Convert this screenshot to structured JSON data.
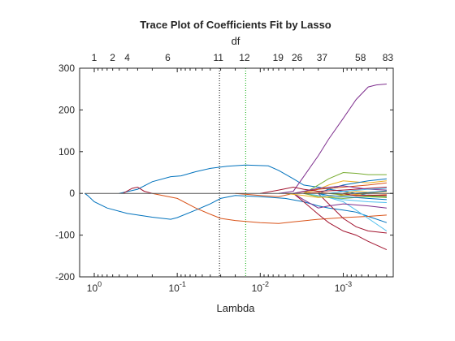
{
  "chart_data": {
    "type": "line",
    "title": "Trace Plot of Coefficients Fit by Lasso",
    "xlabel": "Lambda",
    "top_label": "df",
    "x_scale": "log",
    "x_reversed": true,
    "xlim": [
      1.5,
      0.00025
    ],
    "ylim": [
      -200,
      300
    ],
    "y_ticks": [
      -200,
      -100,
      0,
      100,
      200,
      300
    ],
    "x_ticks": [
      {
        "value": 1,
        "base": "10",
        "exp": "0"
      },
      {
        "value": 0.1,
        "base": "10",
        "exp": "-1"
      },
      {
        "value": 0.01,
        "base": "10",
        "exp": "-2"
      },
      {
        "value": 0.001,
        "base": "10",
        "exp": "-3"
      }
    ],
    "df_ticks": [
      {
        "lambda": 1.0,
        "df": "1"
      },
      {
        "lambda": 0.6,
        "df": "2"
      },
      {
        "lambda": 0.4,
        "df": "4"
      },
      {
        "lambda": 0.13,
        "df": "6"
      },
      {
        "lambda": 0.032,
        "df": "11"
      },
      {
        "lambda": 0.0155,
        "df": "12"
      },
      {
        "lambda": 0.0061,
        "df": "19"
      },
      {
        "lambda": 0.0036,
        "df": "26"
      },
      {
        "lambda": 0.0018,
        "df": "37"
      },
      {
        "lambda": 0.00062,
        "df": "58"
      },
      {
        "lambda": 0.00029,
        "df": "83"
      }
    ],
    "vlines": [
      {
        "lambda": 0.031,
        "color": "#000000"
      },
      {
        "lambda": 0.015,
        "color": "#00aa00"
      }
    ],
    "series": [
      {
        "color": "#0072BD",
        "points": [
          [
            1.3,
            0
          ],
          [
            1.2,
            -5
          ],
          [
            1.0,
            -20
          ],
          [
            0.7,
            -35
          ],
          [
            0.4,
            -48
          ],
          [
            0.2,
            -57
          ],
          [
            0.12,
            -62
          ],
          [
            0.1,
            -58
          ],
          [
            0.06,
            -40
          ],
          [
            0.04,
            -25
          ],
          [
            0.03,
            -12
          ],
          [
            0.02,
            -5
          ],
          [
            0.01,
            -8
          ],
          [
            0.005,
            -12
          ],
          [
            0.003,
            -20
          ],
          [
            0.002,
            -30
          ],
          [
            0.0015,
            -35
          ],
          [
            0.001,
            -40
          ],
          [
            0.0007,
            -45
          ],
          [
            0.0005,
            -55
          ],
          [
            0.0003,
            -70
          ]
        ]
      },
      {
        "color": "#0072BD",
        "points": [
          [
            0.5,
            0
          ],
          [
            0.3,
            10
          ],
          [
            0.2,
            28
          ],
          [
            0.12,
            40
          ],
          [
            0.09,
            42
          ],
          [
            0.06,
            52
          ],
          [
            0.04,
            60
          ],
          [
            0.025,
            65
          ],
          [
            0.015,
            68
          ],
          [
            0.008,
            66
          ],
          [
            0.006,
            55
          ],
          [
            0.004,
            35
          ],
          [
            0.003,
            20
          ],
          [
            0.002,
            15
          ],
          [
            0.0015,
            10
          ],
          [
            0.001,
            5
          ],
          [
            0.0005,
            -5
          ],
          [
            0.0003,
            -10
          ]
        ]
      },
      {
        "color": "#7E2F8E",
        "points": [
          [
            0.006,
            0
          ],
          [
            0.004,
            5
          ],
          [
            0.003,
            40
          ],
          [
            0.002,
            90
          ],
          [
            0.0015,
            130
          ],
          [
            0.001,
            180
          ],
          [
            0.0007,
            225
          ],
          [
            0.0005,
            255
          ],
          [
            0.0004,
            260
          ],
          [
            0.0003,
            262
          ]
        ]
      },
      {
        "color": "#D95319",
        "points": [
          [
            0.2,
            0
          ],
          [
            0.1,
            -12
          ],
          [
            0.06,
            -35
          ],
          [
            0.04,
            -50
          ],
          [
            0.03,
            -60
          ],
          [
            0.02,
            -65
          ],
          [
            0.01,
            -70
          ],
          [
            0.006,
            -72
          ],
          [
            0.004,
            -68
          ],
          [
            0.002,
            -62
          ],
          [
            0.001,
            -58
          ],
          [
            0.0005,
            -55
          ],
          [
            0.0003,
            -52
          ]
        ]
      },
      {
        "color": "#A2142F",
        "points": [
          [
            0.004,
            0
          ],
          [
            0.003,
            -20
          ],
          [
            0.002,
            -50
          ],
          [
            0.0015,
            -70
          ],
          [
            0.001,
            -90
          ],
          [
            0.0007,
            -100
          ],
          [
            0.0005,
            -115
          ],
          [
            0.0003,
            -135
          ]
        ]
      },
      {
        "color": "#A2142F",
        "points": [
          [
            0.002,
            0
          ],
          [
            0.0015,
            -25
          ],
          [
            0.001,
            -60
          ],
          [
            0.0007,
            -80
          ],
          [
            0.0005,
            -90
          ],
          [
            0.0003,
            -95
          ]
        ]
      },
      {
        "color": "#A2142F",
        "points": [
          [
            0.45,
            0
          ],
          [
            0.35,
            12
          ],
          [
            0.3,
            15
          ],
          [
            0.25,
            5
          ],
          [
            0.2,
            0
          ]
        ]
      },
      {
        "color": "#77AC30",
        "points": [
          [
            0.003,
            0
          ],
          [
            0.002,
            20
          ],
          [
            0.0015,
            35
          ],
          [
            0.001,
            50
          ],
          [
            0.0007,
            48
          ],
          [
            0.0005,
            45
          ],
          [
            0.0003,
            45
          ]
        ]
      },
      {
        "color": "#4DBEEE",
        "points": [
          [
            0.002,
            0
          ],
          [
            0.0015,
            -10
          ],
          [
            0.001,
            -20
          ],
          [
            0.0007,
            -40
          ],
          [
            0.0005,
            -60
          ],
          [
            0.0003,
            -90
          ]
        ]
      },
      {
        "color": "#EDB120",
        "points": [
          [
            0.003,
            0
          ],
          [
            0.002,
            10
          ],
          [
            0.0015,
            20
          ],
          [
            0.001,
            30
          ],
          [
            0.0005,
            25
          ],
          [
            0.0003,
            30
          ]
        ]
      },
      {
        "color": "#7E2F8E",
        "points": [
          [
            0.004,
            0
          ],
          [
            0.003,
            -15
          ],
          [
            0.002,
            -35
          ],
          [
            0.0015,
            -30
          ],
          [
            0.001,
            -25
          ],
          [
            0.0005,
            -30
          ],
          [
            0.0003,
            -35
          ]
        ]
      },
      {
        "color": "#0072BD",
        "points": [
          [
            0.002,
            0
          ],
          [
            0.0015,
            10
          ],
          [
            0.001,
            20
          ],
          [
            0.0007,
            25
          ],
          [
            0.0005,
            30
          ],
          [
            0.0003,
            35
          ]
        ]
      },
      {
        "color": "#D95319",
        "points": [
          [
            0.02,
            0
          ],
          [
            0.01,
            -5
          ],
          [
            0.006,
            -8
          ],
          [
            0.004,
            0
          ],
          [
            0.002,
            10
          ],
          [
            0.001,
            15
          ],
          [
            0.0005,
            20
          ],
          [
            0.0003,
            25
          ]
        ]
      },
      {
        "color": "#A2142F",
        "points": [
          [
            0.01,
            0
          ],
          [
            0.006,
            8
          ],
          [
            0.004,
            15
          ],
          [
            0.003,
            10
          ],
          [
            0.002,
            5
          ],
          [
            0.001,
            8
          ],
          [
            0.0005,
            12
          ],
          [
            0.0003,
            15
          ]
        ]
      },
      {
        "color": "#4DBEEE",
        "points": [
          [
            0.003,
            0
          ],
          [
            0.002,
            -5
          ],
          [
            0.0015,
            -10
          ],
          [
            0.001,
            -15
          ],
          [
            0.0005,
            -20
          ],
          [
            0.0003,
            -22
          ]
        ]
      },
      {
        "color": "#77AC30",
        "points": [
          [
            0.003,
            0
          ],
          [
            0.002,
            -8
          ],
          [
            0.001,
            -12
          ],
          [
            0.0005,
            -8
          ],
          [
            0.0003,
            -10
          ]
        ]
      },
      {
        "color": "#EDB120",
        "points": [
          [
            0.005,
            0
          ],
          [
            0.003,
            -5
          ],
          [
            0.002,
            -10
          ],
          [
            0.001,
            -5
          ],
          [
            0.0005,
            0
          ],
          [
            0.0003,
            5
          ]
        ]
      },
      {
        "color": "#7E2F8E",
        "points": [
          [
            0.004,
            0
          ],
          [
            0.003,
            5
          ],
          [
            0.002,
            12
          ],
          [
            0.001,
            18
          ],
          [
            0.0005,
            10
          ],
          [
            0.0003,
            8
          ]
        ]
      },
      {
        "color": "#0072BD",
        "points": [
          [
            0.002,
            0
          ],
          [
            0.0015,
            -5
          ],
          [
            0.001,
            -8
          ],
          [
            0.0005,
            -12
          ],
          [
            0.0003,
            -15
          ]
        ]
      },
      {
        "color": "#D95319",
        "points": [
          [
            0.003,
            0
          ],
          [
            0.002,
            3
          ],
          [
            0.001,
            -3
          ],
          [
            0.0005,
            -5
          ],
          [
            0.0003,
            -3
          ]
        ]
      },
      {
        "color": "#4DBEEE",
        "points": [
          [
            0.0015,
            0
          ],
          [
            0.001,
            5
          ],
          [
            0.0005,
            10
          ],
          [
            0.0003,
            12
          ]
        ]
      },
      {
        "color": "#77AC30",
        "points": [
          [
            0.0015,
            0
          ],
          [
            0.001,
            -4
          ],
          [
            0.0005,
            -6
          ],
          [
            0.0003,
            -8
          ]
        ]
      },
      {
        "color": "#EDB120",
        "points": [
          [
            0.001,
            0
          ],
          [
            0.0007,
            5
          ],
          [
            0.0005,
            3
          ],
          [
            0.0003,
            4
          ]
        ]
      },
      {
        "color": "#A2142F",
        "points": [
          [
            0.001,
            0
          ],
          [
            0.0007,
            -6
          ],
          [
            0.0005,
            -4
          ],
          [
            0.0003,
            -5
          ]
        ]
      },
      {
        "color": "#0072BD",
        "points": [
          [
            0.0008,
            0
          ],
          [
            0.0005,
            2
          ],
          [
            0.0003,
            6
          ]
        ]
      }
    ]
  }
}
